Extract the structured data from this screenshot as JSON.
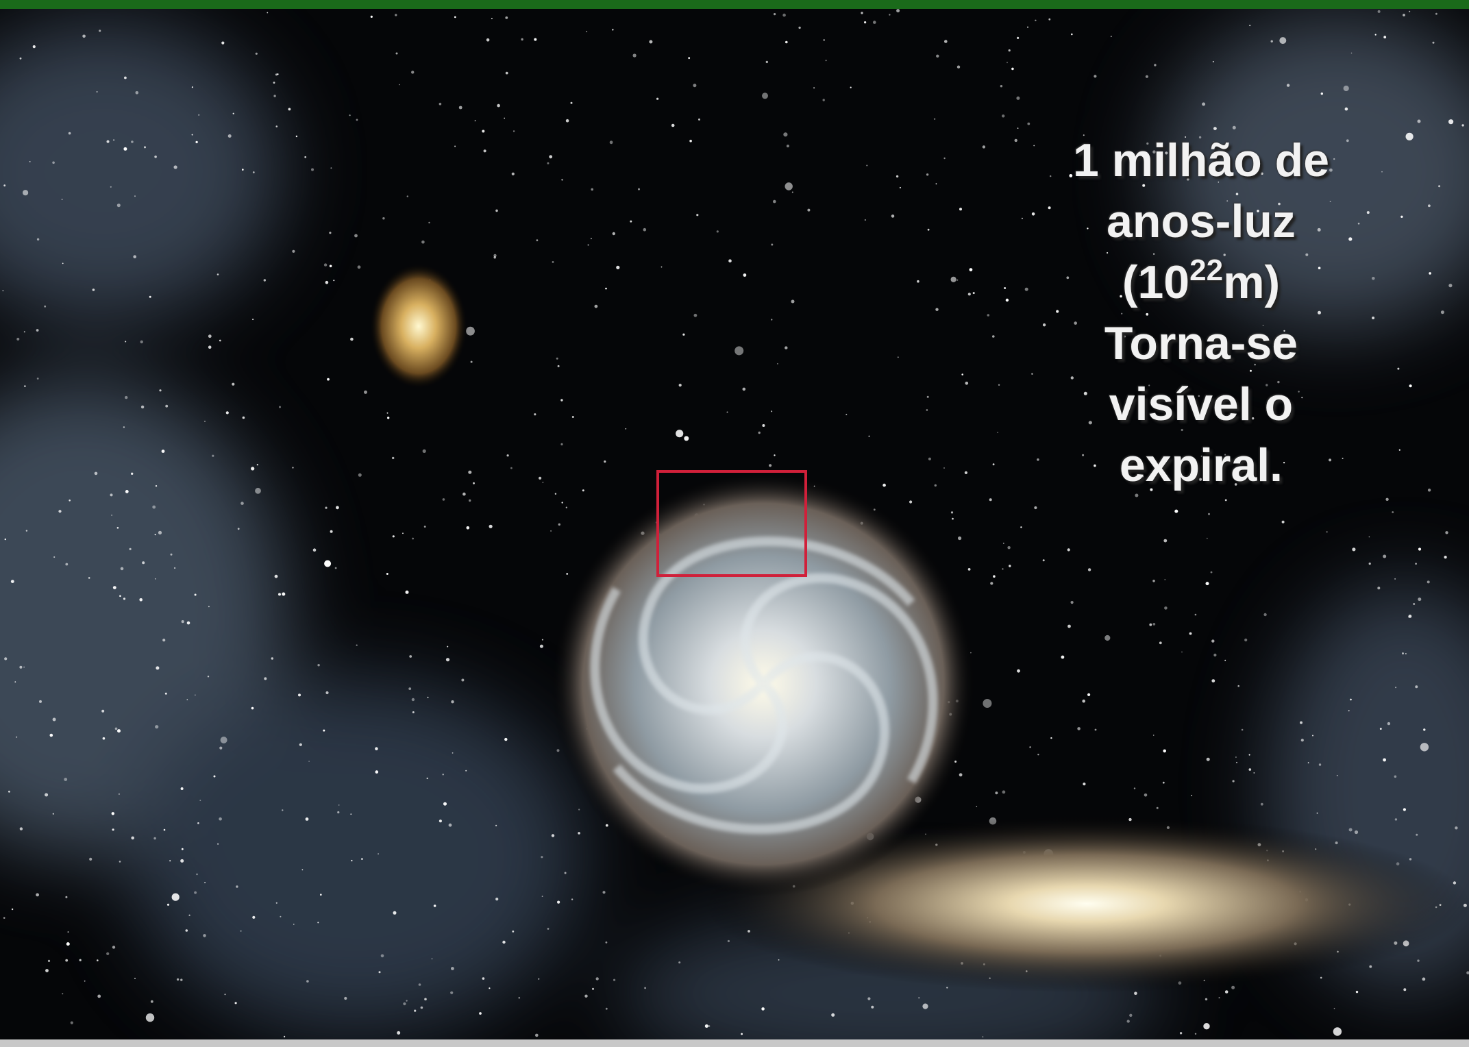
{
  "caption": {
    "line1": "1 milhão de",
    "line2": "anos-luz",
    "line3": {
      "base": "(10",
      "exponent": "22",
      "unit": "m)"
    },
    "line4": "Torna-se",
    "line5": "visível o",
    "line6": "expiral."
  }
}
